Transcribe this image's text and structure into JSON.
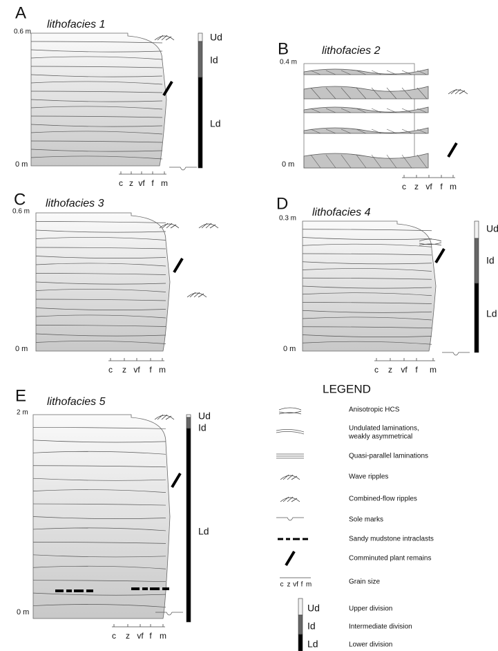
{
  "panels": [
    {
      "letter": "A",
      "title": "lithofacies 1",
      "top": "0.6 m",
      "bottom": "0 m",
      "grain": [
        "c",
        "z",
        "vf",
        "f",
        "m"
      ],
      "divisions": [
        "Ud",
        "Id",
        "Ld"
      ]
    },
    {
      "letter": "B",
      "title": "lithofacies 2",
      "top": "0.4 m",
      "bottom": "0 m",
      "grain": [
        "c",
        "z",
        "vf",
        "f",
        "m"
      ]
    },
    {
      "letter": "C",
      "title": "lithofacies 3",
      "top": "0.6 m",
      "bottom": "0 m",
      "grain": [
        "c",
        "z",
        "vf",
        "f",
        "m"
      ]
    },
    {
      "letter": "D",
      "title": "lithofacies 4",
      "top": "0.3 m",
      "bottom": "0 m",
      "grain": [
        "c",
        "z",
        "vf",
        "f",
        "m"
      ],
      "divisions": [
        "Ud",
        "Id",
        "Ld"
      ]
    },
    {
      "letter": "E",
      "title": "lithofacies 5",
      "top": "2 m",
      "bottom": "0 m",
      "grain": [
        "c",
        "z",
        "vf",
        "f",
        "m"
      ],
      "divisions": [
        "Ud",
        "Id",
        "Ld"
      ]
    }
  ],
  "legend": {
    "title": "LEGEND",
    "items": [
      {
        "label": [
          "Anisotropic HCS"
        ]
      },
      {
        "label": [
          "Undulated laminations,",
          "weakly asymmetrical"
        ]
      },
      {
        "label": [
          "Quasi-parallel laminations"
        ]
      },
      {
        "label": [
          "Wave ripples"
        ]
      },
      {
        "label": [
          "Combined-flow ripples"
        ]
      },
      {
        "label": [
          "Sole marks"
        ]
      },
      {
        "label": [
          "Sandy mudstone intraclasts"
        ]
      },
      {
        "label": [
          "Comminuted plant remains"
        ]
      },
      {
        "label": [
          "Grain size"
        ]
      }
    ],
    "grain": [
      "c",
      "z",
      "vf",
      "f",
      "m"
    ],
    "divisions": [
      {
        "code": "Ud",
        "label": "Upper division"
      },
      {
        "code": "Id",
        "label": "Intermediate division"
      },
      {
        "code": "Ld",
        "label": "Lower division"
      }
    ]
  }
}
